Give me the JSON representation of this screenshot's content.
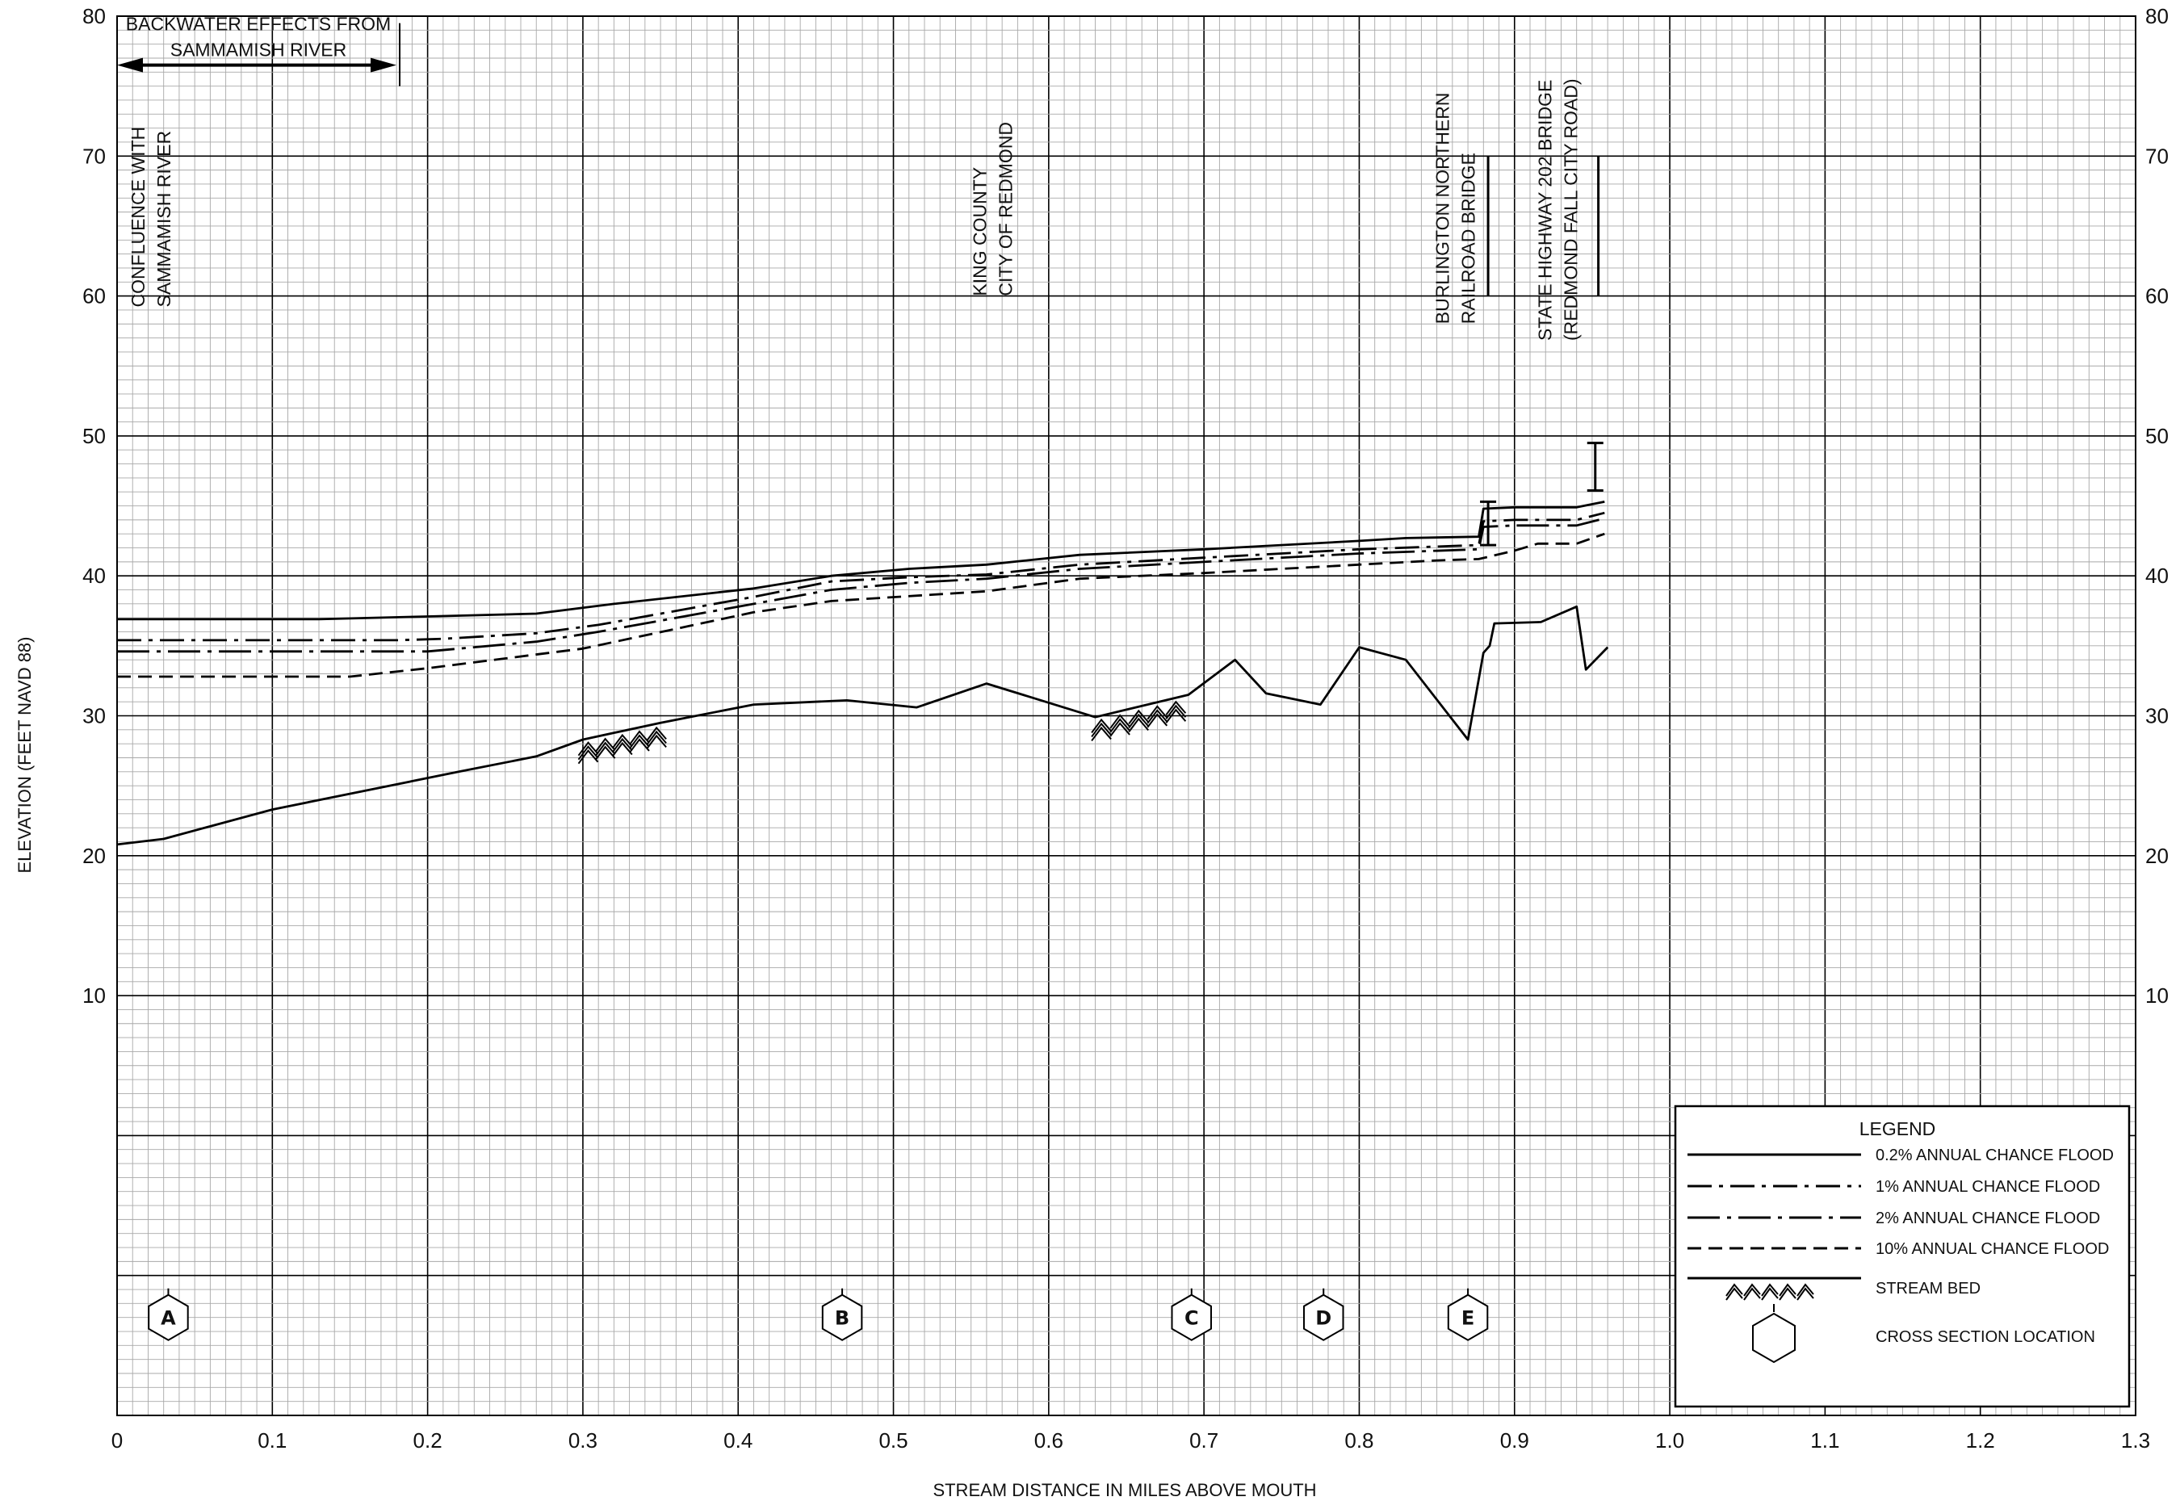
{
  "chart_data": {
    "type": "line",
    "xlabel": "STREAM DISTANCE IN MILES ABOVE MOUTH",
    "ylabel": "ELEVATION (FEET NAVD 88)",
    "xlim": [
      0,
      1.3
    ],
    "ylim": [
      -20,
      80
    ],
    "x_ticks": [
      "0",
      "0.1",
      "0.2",
      "0.3",
      "0.4",
      "0.5",
      "0.6",
      "0.7",
      "0.8",
      "0.9",
      "1.0",
      "1.1",
      "1.2",
      "1.3"
    ],
    "y_ticks": [
      "10",
      "20",
      "30",
      "40",
      "50",
      "60",
      "70",
      "80"
    ],
    "grid": true,
    "series": [
      {
        "name": "0.2% ANNUAL CHANCE FLOOD",
        "style": "solid",
        "x": [
          0,
          0.13,
          0.2,
          0.27,
          0.32,
          0.41,
          0.46,
          0.51,
          0.56,
          0.62,
          0.7,
          0.8,
          0.83,
          0.877,
          0.88,
          0.9,
          0.94,
          0.958
        ],
        "y": [
          36.9,
          36.9,
          37.1,
          37.3,
          38.0,
          39.1,
          40.0,
          40.5,
          40.8,
          41.5,
          41.9,
          42.5,
          42.7,
          42.8,
          44.8,
          44.9,
          44.9,
          45.3
        ]
      },
      {
        "name": "1% ANNUAL CHANCE FLOOD",
        "style": "dash-dot",
        "x": [
          0,
          0.18,
          0.21,
          0.27,
          0.31,
          0.41,
          0.46,
          0.51,
          0.56,
          0.62,
          0.7,
          0.8,
          0.877,
          0.88,
          0.9,
          0.94,
          0.958
        ],
        "y": [
          35.4,
          35.4,
          35.5,
          35.9,
          36.5,
          38.5,
          39.6,
          39.9,
          40.1,
          40.8,
          41.3,
          41.9,
          42.2,
          43.9,
          44.0,
          44.0,
          44.5
        ]
      },
      {
        "name": "2% ANNUAL CHANCE FLOOD",
        "style": "long-dash-dot",
        "x": [
          0,
          0.2,
          0.27,
          0.31,
          0.41,
          0.46,
          0.51,
          0.56,
          0.62,
          0.7,
          0.8,
          0.877,
          0.88,
          0.9,
          0.94,
          0.958
        ],
        "y": [
          34.6,
          34.6,
          35.3,
          36.0,
          38.0,
          39.0,
          39.5,
          39.8,
          40.5,
          41.0,
          41.6,
          41.9,
          43.5,
          43.6,
          43.6,
          44.1
        ]
      },
      {
        "name": "10% ANNUAL CHANCE FLOOD",
        "style": "dashed",
        "x": [
          0,
          0.15,
          0.2,
          0.3,
          0.41,
          0.46,
          0.56,
          0.62,
          0.7,
          0.8,
          0.85,
          0.877,
          0.9,
          0.915,
          0.94,
          0.958
        ],
        "y": [
          32.8,
          32.8,
          33.4,
          34.8,
          37.4,
          38.2,
          38.9,
          39.8,
          40.2,
          40.8,
          41.1,
          41.2,
          41.8,
          42.3,
          42.3,
          43.0
        ]
      },
      {
        "name": "STREAM BED",
        "style": "streambed",
        "x": [
          0,
          0.03,
          0.1,
          0.22,
          0.27,
          0.3,
          0.35,
          0.41,
          0.47,
          0.515,
          0.56,
          0.63,
          0.69,
          0.72,
          0.74,
          0.775,
          0.8,
          0.83,
          0.87,
          0.88,
          0.884,
          0.887,
          0.917,
          0.94,
          0.946,
          0.96
        ],
        "y": [
          20.8,
          21.2,
          23.3,
          26.0,
          27.1,
          28.3,
          29.5,
          30.8,
          31.1,
          30.6,
          32.3,
          29.9,
          31.5,
          34.0,
          31.6,
          30.8,
          34.9,
          34.0,
          28.3,
          34.5,
          35.0,
          36.6,
          36.7,
          37.8,
          33.3,
          34.9
        ]
      }
    ],
    "hatch_ranges": [
      [
        0.3,
        0.355
      ],
      [
        0.63,
        0.69
      ]
    ],
    "structures": [
      {
        "x": 0.883,
        "top": 45.3,
        "bottom": 42.2,
        "label_lines": [
          "BURLINGTON NORTHERN",
          "RAILROAD BRIDGE"
        ]
      },
      {
        "x": 0.952,
        "top": 49.5,
        "bottom": 46.1,
        "label_lines": [
          "STATE HIGHWAY 202 BRIDGE",
          "(REDMOND FALL CITY ROAD)"
        ]
      }
    ],
    "annotations": {
      "backwater": {
        "lines": [
          "BACKWATER EFFECTS FROM",
          "SAMMAMISH RIVER"
        ],
        "x_start": 0,
        "x_end": 0.182
      },
      "confluence": [
        "CONFLUENCE WITH",
        "SAMMAMISH RIVER"
      ],
      "boundary": [
        "KING COUNTY",
        "CITY OF REDMOND"
      ]
    },
    "cross_sections": [
      {
        "label": "A",
        "x": 0.033
      },
      {
        "label": "B",
        "x": 0.467
      },
      {
        "label": "C",
        "x": 0.692
      },
      {
        "label": "D",
        "x": 0.777
      },
      {
        "label": "E",
        "x": 0.87
      }
    ],
    "legend": {
      "title": "LEGEND",
      "position": "bottom-right",
      "items": [
        {
          "label": "0.2% ANNUAL CHANCE FLOOD",
          "style": "solid"
        },
        {
          "label": "1% ANNUAL CHANCE FLOOD",
          "style": "dash-dot"
        },
        {
          "label": "2% ANNUAL CHANCE FLOOD",
          "style": "long-dash-dot"
        },
        {
          "label": "10% ANNUAL CHANCE FLOOD",
          "style": "dashed"
        },
        {
          "label": "STREAM BED",
          "style": "streambed"
        },
        {
          "label": "CROSS SECTION LOCATION",
          "style": "hexagon"
        }
      ]
    }
  }
}
